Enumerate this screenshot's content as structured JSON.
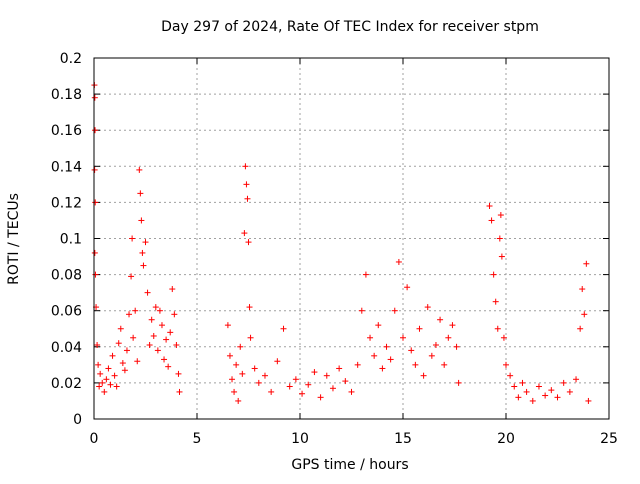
{
  "chart_data": {
    "type": "scatter",
    "title": "Day 297 of 2024, Rate Of TEC Index for receiver stpm",
    "xlabel": "GPS time / hours",
    "ylabel": "ROTI / TECUs",
    "xlim": [
      0,
      25
    ],
    "ylim": [
      0,
      0.2
    ],
    "xticks": [
      0,
      5,
      10,
      15,
      20,
      25
    ],
    "xtick_labels": [
      "0",
      "5",
      "10",
      "15",
      "20",
      "25"
    ],
    "yticks": [
      0,
      0.02,
      0.04,
      0.06,
      0.08,
      0.1,
      0.12,
      0.14,
      0.16,
      0.18,
      0.2
    ],
    "ytick_labels": [
      "0",
      "0.02",
      "0.04",
      "0.06",
      "0.08",
      "0.1",
      "0.12",
      "0.14",
      "0.16",
      "0.18",
      "0.2"
    ],
    "grid": true,
    "marker": "+",
    "color": "#ff0000",
    "series": [
      {
        "name": "ROTI",
        "points": [
          [
            0.02,
            0.185
          ],
          [
            0.04,
            0.178
          ],
          [
            0.05,
            0.16
          ],
          [
            0.03,
            0.138
          ],
          [
            0.06,
            0.12
          ],
          [
            0.04,
            0.092
          ],
          [
            0.07,
            0.08
          ],
          [
            0.1,
            0.062
          ],
          [
            0.15,
            0.041
          ],
          [
            0.2,
            0.03
          ],
          [
            0.25,
            0.018
          ],
          [
            0.3,
            0.025
          ],
          [
            0.4,
            0.02
          ],
          [
            0.5,
            0.015
          ],
          [
            0.6,
            0.022
          ],
          [
            0.7,
            0.028
          ],
          [
            0.8,
            0.019
          ],
          [
            0.9,
            0.035
          ],
          [
            1.0,
            0.024
          ],
          [
            1.1,
            0.018
          ],
          [
            1.2,
            0.042
          ],
          [
            1.3,
            0.05
          ],
          [
            1.4,
            0.031
          ],
          [
            1.5,
            0.027
          ],
          [
            1.6,
            0.038
          ],
          [
            1.7,
            0.058
          ],
          [
            1.8,
            0.079
          ],
          [
            1.85,
            0.1
          ],
          [
            1.9,
            0.045
          ],
          [
            2.0,
            0.06
          ],
          [
            2.1,
            0.032
          ],
          [
            2.2,
            0.138
          ],
          [
            2.25,
            0.125
          ],
          [
            2.3,
            0.11
          ],
          [
            2.35,
            0.092
          ],
          [
            2.4,
            0.085
          ],
          [
            2.5,
            0.098
          ],
          [
            2.6,
            0.07
          ],
          [
            2.7,
            0.041
          ],
          [
            2.8,
            0.055
          ],
          [
            2.9,
            0.046
          ],
          [
            3.0,
            0.062
          ],
          [
            3.1,
            0.038
          ],
          [
            3.2,
            0.06
          ],
          [
            3.3,
            0.052
          ],
          [
            3.4,
            0.033
          ],
          [
            3.5,
            0.044
          ],
          [
            3.6,
            0.029
          ],
          [
            3.7,
            0.048
          ],
          [
            3.8,
            0.072
          ],
          [
            3.9,
            0.058
          ],
          [
            4.0,
            0.041
          ],
          [
            4.1,
            0.025
          ],
          [
            4.15,
            0.015
          ],
          [
            6.5,
            0.052
          ],
          [
            6.6,
            0.035
          ],
          [
            6.7,
            0.022
          ],
          [
            6.8,
            0.015
          ],
          [
            6.9,
            0.03
          ],
          [
            7.0,
            0.01
          ],
          [
            7.1,
            0.04
          ],
          [
            7.2,
            0.025
          ],
          [
            7.3,
            0.103
          ],
          [
            7.35,
            0.14
          ],
          [
            7.4,
            0.13
          ],
          [
            7.45,
            0.122
          ],
          [
            7.5,
            0.098
          ],
          [
            7.55,
            0.062
          ],
          [
            7.6,
            0.045
          ],
          [
            7.8,
            0.028
          ],
          [
            8.0,
            0.02
          ],
          [
            8.3,
            0.024
          ],
          [
            8.6,
            0.015
          ],
          [
            8.9,
            0.032
          ],
          [
            9.2,
            0.05
          ],
          [
            9.5,
            0.018
          ],
          [
            9.8,
            0.022
          ],
          [
            10.1,
            0.014
          ],
          [
            10.4,
            0.019
          ],
          [
            10.7,
            0.026
          ],
          [
            11.0,
            0.012
          ],
          [
            11.3,
            0.024
          ],
          [
            11.6,
            0.017
          ],
          [
            11.9,
            0.028
          ],
          [
            12.2,
            0.021
          ],
          [
            12.5,
            0.015
          ],
          [
            12.8,
            0.03
          ],
          [
            13.0,
            0.06
          ],
          [
            13.2,
            0.08
          ],
          [
            13.4,
            0.045
          ],
          [
            13.6,
            0.035
          ],
          [
            13.8,
            0.052
          ],
          [
            14.0,
            0.028
          ],
          [
            14.2,
            0.04
          ],
          [
            14.4,
            0.033
          ],
          [
            14.6,
            0.06
          ],
          [
            14.8,
            0.087
          ],
          [
            15.0,
            0.045
          ],
          [
            15.2,
            0.073
          ],
          [
            15.4,
            0.038
          ],
          [
            15.6,
            0.03
          ],
          [
            15.8,
            0.05
          ],
          [
            16.0,
            0.024
          ],
          [
            16.2,
            0.062
          ],
          [
            16.4,
            0.035
          ],
          [
            16.6,
            0.041
          ],
          [
            16.8,
            0.055
          ],
          [
            17.0,
            0.03
          ],
          [
            17.2,
            0.045
          ],
          [
            17.4,
            0.052
          ],
          [
            17.6,
            0.04
          ],
          [
            17.7,
            0.02
          ],
          [
            19.2,
            0.118
          ],
          [
            19.3,
            0.11
          ],
          [
            19.4,
            0.08
          ],
          [
            19.5,
            0.065
          ],
          [
            19.6,
            0.05
          ],
          [
            19.7,
            0.1
          ],
          [
            19.75,
            0.113
          ],
          [
            19.8,
            0.09
          ],
          [
            19.9,
            0.045
          ],
          [
            20.0,
            0.03
          ],
          [
            20.2,
            0.024
          ],
          [
            20.4,
            0.018
          ],
          [
            20.6,
            0.012
          ],
          [
            20.8,
            0.02
          ],
          [
            21.0,
            0.015
          ],
          [
            21.3,
            0.01
          ],
          [
            21.6,
            0.018
          ],
          [
            21.9,
            0.013
          ],
          [
            22.2,
            0.016
          ],
          [
            22.5,
            0.012
          ],
          [
            22.8,
            0.02
          ],
          [
            23.1,
            0.015
          ],
          [
            23.4,
            0.022
          ],
          [
            23.6,
            0.05
          ],
          [
            23.7,
            0.072
          ],
          [
            23.8,
            0.058
          ],
          [
            23.9,
            0.086
          ],
          [
            24.0,
            0.01
          ]
        ]
      }
    ]
  }
}
